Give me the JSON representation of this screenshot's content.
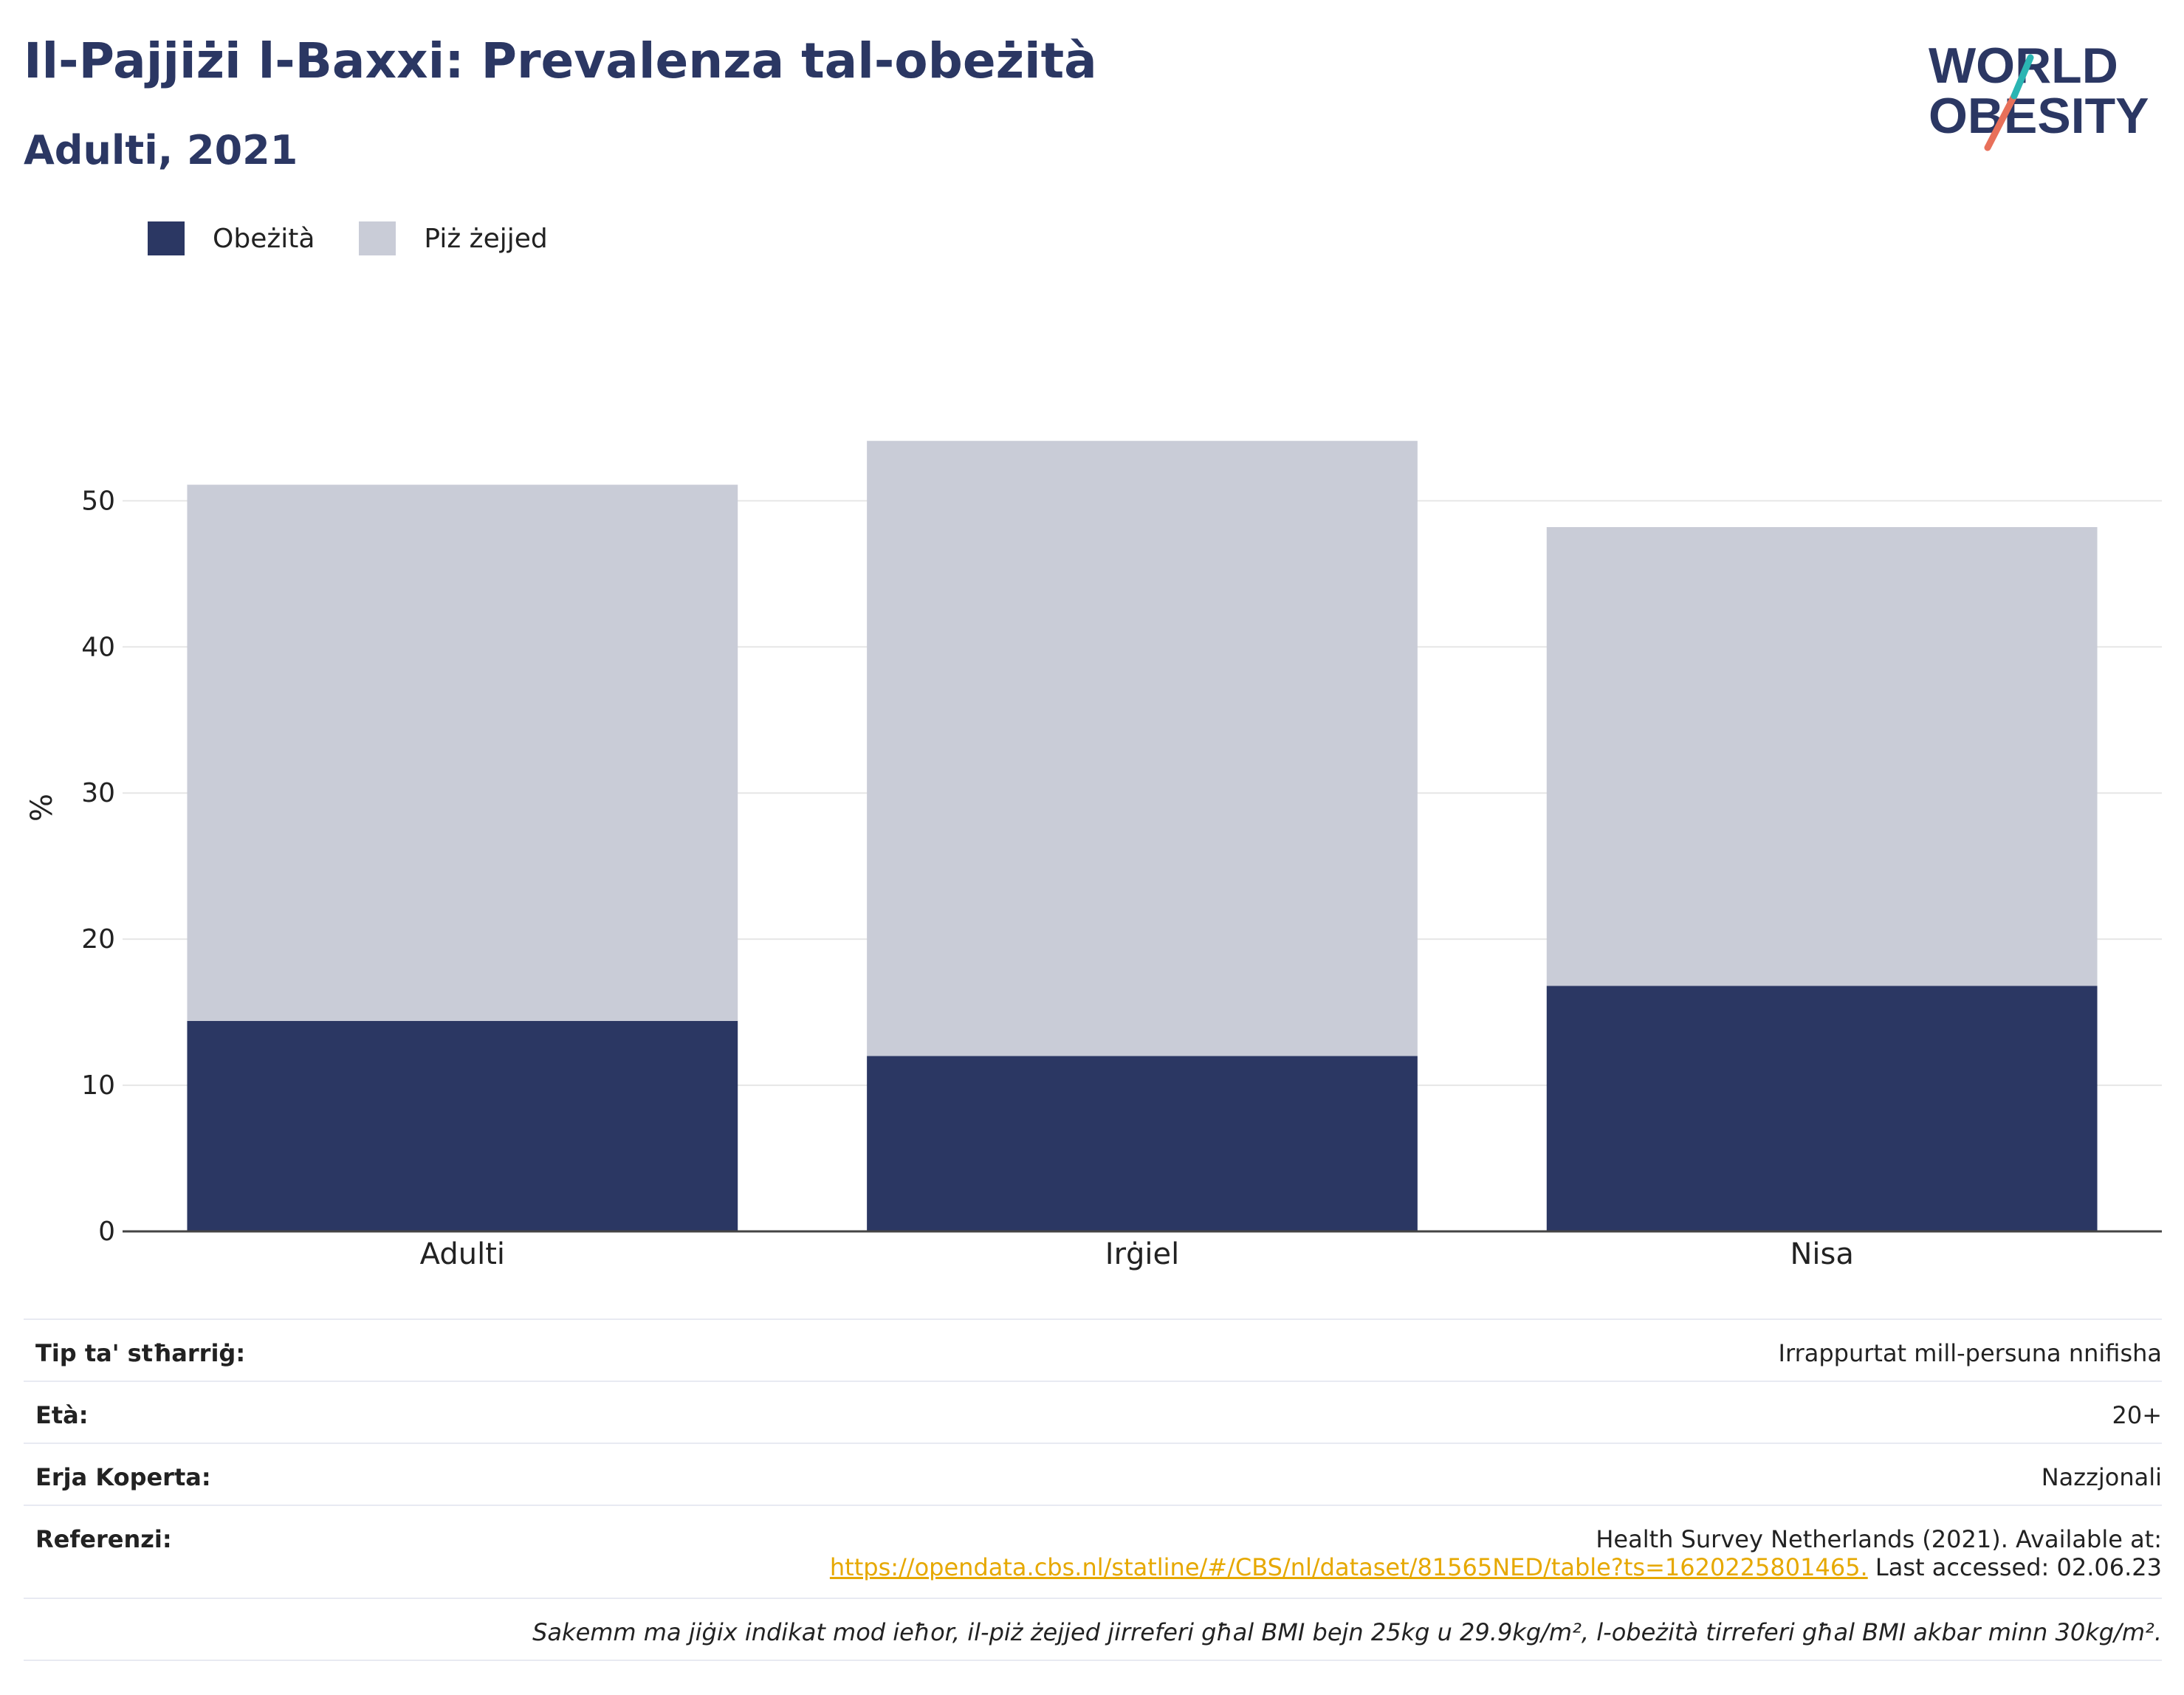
{
  "header": {
    "title": "Il-Pajjiżi l-Baxxi: Prevalenza tal-obeżità",
    "subtitle": "Adulti, 2021"
  },
  "logo": {
    "line1": "WORLD",
    "line2": "OBESITY",
    "accent_teal": "#2bb5b3",
    "accent_coral": "#e8705a",
    "text_color": "#2b3763"
  },
  "legend": {
    "items": [
      {
        "label": "Obeżità",
        "color": "#2b3763"
      },
      {
        "label": "Piż żejjed",
        "color": "#c9ccd7"
      }
    ]
  },
  "chart_data": {
    "type": "bar",
    "stacked": true,
    "categories": [
      "Adulti",
      "Irġiel",
      "Nisa"
    ],
    "series": [
      {
        "name": "Obeżità",
        "values": [
          14.4,
          12.0,
          16.8
        ],
        "color": "#2b3763"
      },
      {
        "name": "Piż żejjed",
        "values": [
          36.7,
          42.1,
          31.4
        ],
        "color": "#c9ccd7"
      }
    ],
    "ylabel": "%",
    "ylim": [
      0,
      58
    ],
    "yticks": [
      0,
      10,
      20,
      30,
      40,
      50
    ],
    "grid": true,
    "legend_position": "top-left"
  },
  "info": {
    "rows": [
      {
        "key": "Tip ta' stħarriġ:",
        "value": "Irrappurtat mill-persuna nnifisha"
      },
      {
        "key": "Età:",
        "value": "20+"
      },
      {
        "key": "Erja Koperta:",
        "value": "Nazzjonali"
      }
    ],
    "reference": {
      "key": "Referenzi:",
      "line1": "Health Survey Netherlands (2021). Available at:",
      "link": "https://opendata.cbs.nl/statline/#/CBS/nl/dataset/81565NED/table?ts=1620225801465.",
      "after_link": " Last accessed: 02.06.23"
    },
    "note": "Sakemm ma jiġix indikat mod ieħor, il-piż żejjed jirreferi għal BMI bejn 25kg u 29.9kg/m², l-obeżità tirreferi għal BMI akbar minn 30kg/m²."
  }
}
